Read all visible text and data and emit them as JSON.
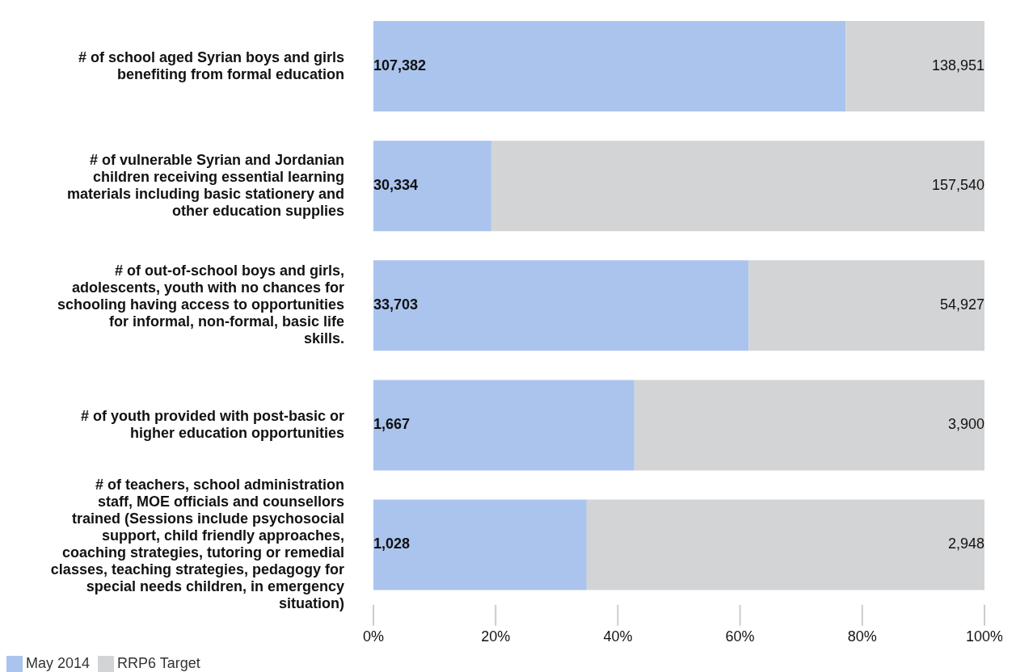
{
  "chart_data": {
    "type": "bar",
    "orientation": "horizontal",
    "stacked": true,
    "categories": [
      "# of school aged Syrian boys and girls benefiting from formal education",
      "# of vulnerable Syrian and Jordanian children receiving essential learning materials including basic stationery and other education supplies",
      "# of out-of-school boys and girls, adolescents, youth with no chances for schooling having access to opportunities for informal, non-formal, basic life skills.",
      "# of youth provided with post-basic or higher education opportunities",
      "# of teachers, school administration staff, MOE officials and counsellors trained (Sessions include psychosocial support, child friendly approaches, coaching strategies, tutoring or remedial classes, teaching strategies, pedagogy for special needs children, in emergency situation)"
    ],
    "series": [
      {
        "name": "May 2014",
        "color": "#aac4ee",
        "values": [
          77.3,
          19.3,
          61.4,
          42.7,
          34.9
        ]
      },
      {
        "name": "RRP6 Target",
        "color": "#d3d4d6",
        "values": [
          22.7,
          80.7,
          38.6,
          57.3,
          65.1
        ]
      }
    ],
    "annotations": [
      "107,382",
      "138,951",
      "30,334",
      "157,540",
      "33,703",
      "54,927",
      "1,667",
      "3,900",
      "1,028",
      "2,948"
    ],
    "xlim": [
      0,
      100
    ],
    "xticks": [
      {
        "value": 0,
        "label": "0%"
      },
      {
        "value": 20,
        "label": "20%"
      },
      {
        "value": 40,
        "label": "40%"
      },
      {
        "value": 60,
        "label": "60%"
      },
      {
        "value": 80,
        "label": "80%"
      },
      {
        "value": 100,
        "label": "100%"
      }
    ],
    "grid": false,
    "legend": "bottom left"
  }
}
